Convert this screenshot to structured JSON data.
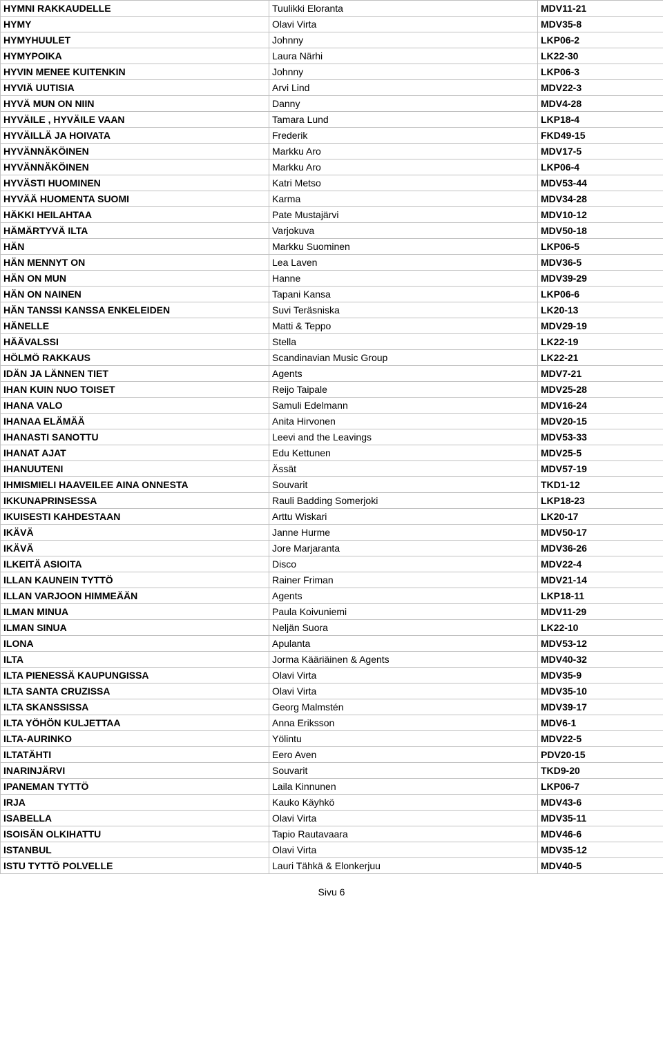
{
  "page_label": "Sivu 6",
  "rows": [
    {
      "song": "HYMNI RAKKAUDELLE",
      "artist": "Tuulikki Eloranta",
      "code": "MDV11-21"
    },
    {
      "song": "HYMY",
      "artist": "Olavi Virta",
      "code": "MDV35-8"
    },
    {
      "song": "HYMYHUULET",
      "artist": "Johnny",
      "code": "LKP06-2"
    },
    {
      "song": "HYMYPOIKA",
      "artist": "Laura Närhi",
      "code": "LK22-30"
    },
    {
      "song": "HYVIN MENEE KUITENKIN",
      "artist": "Johnny",
      "code": "LKP06-3"
    },
    {
      "song": "HYVIÄ UUTISIA",
      "artist": "Arvi Lind",
      "code": "MDV22-3"
    },
    {
      "song": "HYVÄ MUN ON NIIN",
      "artist": "Danny",
      "code": "MDV4-28"
    },
    {
      "song": "HYVÄILE , HYVÄILE VAAN",
      "artist": "Tamara Lund",
      "code": "LKP18-4"
    },
    {
      "song": "HYVÄILLÄ JA HOIVATA",
      "artist": "Frederik",
      "code": "FKD49-15"
    },
    {
      "song": "HYVÄNNÄKÖINEN",
      "artist": "Markku Aro",
      "code": "MDV17-5"
    },
    {
      "song": "HYVÄNNÄKÖINEN",
      "artist": "Markku Aro",
      "code": "LKP06-4"
    },
    {
      "song": "HYVÄSTI HUOMINEN",
      "artist": "Katri Metso",
      "code": "MDV53-44"
    },
    {
      "song": "HYVÄÄ HUOMENTA SUOMI",
      "artist": "Karma",
      "code": "MDV34-28"
    },
    {
      "song": "HÄKKI HEILAHTAA",
      "artist": "Pate Mustajärvi",
      "code": "MDV10-12"
    },
    {
      "song": "HÄMÄRTYVÄ ILTA",
      "artist": "Varjokuva",
      "code": "MDV50-18"
    },
    {
      "song": "HÄN",
      "artist": "Markku Suominen",
      "code": "LKP06-5"
    },
    {
      "song": "HÄN MENNYT ON",
      "artist": "Lea Laven",
      "code": "MDV36-5"
    },
    {
      "song": "HÄN ON MUN",
      "artist": "Hanne",
      "code": "MDV39-29"
    },
    {
      "song": "HÄN ON NAINEN",
      "artist": "Tapani Kansa",
      "code": "LKP06-6"
    },
    {
      "song": "HÄN TANSSI KANSSA ENKELEIDEN",
      "artist": "Suvi Teräsniska",
      "code": "LK20-13"
    },
    {
      "song": "HÄNELLE",
      "artist": "Matti & Teppo",
      "code": "MDV29-19"
    },
    {
      "song": "HÄÄVALSSI",
      "artist": "Stella",
      "code": "LK22-19"
    },
    {
      "song": "HÖLMÖ RAKKAUS",
      "artist": "Scandinavian Music Group",
      "code": "LK22-21"
    },
    {
      "song": "IDÄN JA LÄNNEN TIET",
      "artist": "Agents",
      "code": "MDV7-21"
    },
    {
      "song": "IHAN KUIN NUO TOISET",
      "artist": "Reijo Taipale",
      "code": "MDV25-28"
    },
    {
      "song": "IHANA VALO",
      "artist": "Samuli Edelmann",
      "code": "MDV16-24"
    },
    {
      "song": "IHANAA ELÄMÄÄ",
      "artist": "Anita Hirvonen",
      "code": "MDV20-15"
    },
    {
      "song": "IHANASTI SANOTTU",
      "artist": "Leevi and the Leavings",
      "code": "MDV53-33"
    },
    {
      "song": "IHANAT AJAT",
      "artist": "Edu Kettunen",
      "code": "MDV25-5"
    },
    {
      "song": "IHANUUTENI",
      "artist": "Ässät",
      "code": "MDV57-19"
    },
    {
      "song": "IHMISMIELI HAAVEILEE AINA ONNESTA",
      "artist": "Souvarit",
      "code": "TKD1-12"
    },
    {
      "song": "IKKUNAPRINSESSA",
      "artist": "Rauli Badding Somerjoki",
      "code": "LKP18-23"
    },
    {
      "song": "IKUISESTI KAHDESTAAN",
      "artist": "Arttu Wiskari",
      "code": "LK20-17"
    },
    {
      "song": "IKÄVÄ",
      "artist": "Janne Hurme",
      "code": "MDV50-17"
    },
    {
      "song": "IKÄVÄ",
      "artist": "Jore Marjaranta",
      "code": "MDV36-26"
    },
    {
      "song": "ILKEITÄ ASIOITA",
      "artist": "Disco",
      "code": "MDV22-4"
    },
    {
      "song": "ILLAN KAUNEIN TYTTÖ",
      "artist": "Rainer Friman",
      "code": "MDV21-14"
    },
    {
      "song": "ILLAN VARJOON HIMMEÄÄN",
      "artist": "Agents",
      "code": "LKP18-11"
    },
    {
      "song": "ILMAN MINUA",
      "artist": "Paula Koivuniemi",
      "code": "MDV11-29"
    },
    {
      "song": "ILMAN SINUA",
      "artist": "Neljän Suora",
      "code": "LK22-10"
    },
    {
      "song": "ILONA",
      "artist": "Apulanta",
      "code": "MDV53-12"
    },
    {
      "song": "ILTA",
      "artist": "Jorma Kääriäinen & Agents",
      "code": "MDV40-32"
    },
    {
      "song": "ILTA PIENESSÄ KAUPUNGISSA",
      "artist": "Olavi Virta",
      "code": "MDV35-9"
    },
    {
      "song": "ILTA SANTA CRUZISSA",
      "artist": "Olavi Virta",
      "code": "MDV35-10"
    },
    {
      "song": "ILTA SKANSSISSA",
      "artist": "Georg Malmstén",
      "code": "MDV39-17"
    },
    {
      "song": "ILTA YÖHÖN KULJETTAA",
      "artist": "Anna Eriksson",
      "code": "MDV6-1"
    },
    {
      "song": "ILTA-AURINKO",
      "artist": "Yölintu",
      "code": "MDV22-5"
    },
    {
      "song": "ILTATÄHTI",
      "artist": "Eero Aven",
      "code": "PDV20-15"
    },
    {
      "song": "INARINJÄRVI",
      "artist": "Souvarit",
      "code": "TKD9-20"
    },
    {
      "song": "IPANEMAN TYTTÖ",
      "artist": "Laila Kinnunen",
      "code": "LKP06-7"
    },
    {
      "song": "IRJA",
      "artist": "Kauko Käyhkö",
      "code": "MDV43-6"
    },
    {
      "song": "ISABELLA",
      "artist": "Olavi Virta",
      "code": "MDV35-11"
    },
    {
      "song": "ISOISÄN OLKIHATTU",
      "artist": "Tapio Rautavaara",
      "code": "MDV46-6"
    },
    {
      "song": "ISTANBUL",
      "artist": "Olavi Virta",
      "code": "MDV35-12"
    },
    {
      "song": "ISTU TYTTÖ POLVELLE",
      "artist": "Lauri Tähkä & Elonkerjuu",
      "code": "MDV40-5"
    }
  ]
}
